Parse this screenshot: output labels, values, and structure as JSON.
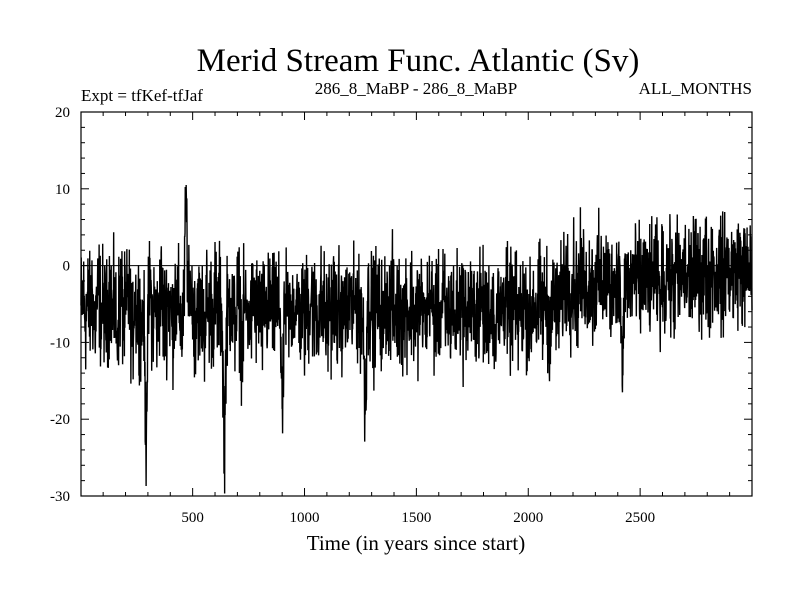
{
  "chart_data": {
    "type": "line",
    "title": "Merid Stream Func. Atlantic (Sv)",
    "subtitle_left": "Expt = tfKef-tfJaf",
    "subtitle_center": "286_8_MaBP - 286_8_MaBP",
    "subtitle_right": "ALL_MONTHS",
    "xlabel": "Time (in years since start)",
    "ylabel": "",
    "xlim": [
      1,
      3000
    ],
    "ylim": [
      -30,
      20
    ],
    "x_ticks": [
      500,
      1000,
      1500,
      2000,
      2500
    ],
    "x_tick_labels": [
      "500",
      "1000",
      "1500",
      "2000",
      "2500"
    ],
    "y_ticks": [
      -30,
      -20,
      -10,
      0,
      10,
      20
    ],
    "y_tick_labels": [
      "-30",
      "-20",
      "-10",
      "0",
      "10",
      "20"
    ],
    "grid": false,
    "line_color": "#000000",
    "series": [
      {
        "x_start": 1,
        "x_step": 10,
        "values": [
          -5.2,
          -3.8,
          -7.1,
          -4.5,
          -6.3,
          -2.9,
          -8.4,
          -5.7,
          -3.1,
          -6.8,
          -4.2,
          -7.5,
          -5.9,
          -2.6,
          -6.1,
          -4.8,
          -8.9,
          -5.3,
          -3.7,
          -7.2,
          -6.4,
          -4.1,
          -5.6,
          -9.3,
          -3.4,
          -6.7,
          -5.1,
          -7.8,
          -4.6,
          -23.0,
          -5.8,
          -3.3,
          -6.9,
          -4.7,
          -8.1,
          -5.4,
          -2.8,
          -7.4,
          -6.2,
          -4.4,
          -5.5,
          -7.9,
          -3.6,
          -6.5,
          -4.9,
          -8.3,
          -5.0,
          10.5,
          -6.6,
          -4.3,
          -5.2,
          -7.6,
          -3.9,
          -6.0,
          -5.7,
          -8.7,
          -4.0,
          -6.3,
          -5.1,
          -7.3,
          -3.5,
          -6.8,
          -4.6,
          -5.9,
          -24.5,
          -7.0,
          -5.3,
          -4.2,
          -6.4,
          -8.0,
          -3.8,
          -5.6,
          -10.8,
          -4.5,
          -6.1,
          -5.0,
          -7.7,
          -3.2,
          -6.5,
          -4.9,
          -5.4,
          -8.6,
          -4.1,
          -6.7,
          -5.8,
          -3.6,
          -7.1,
          -4.4,
          -6.0,
          -5.5,
          -18.6,
          -7.4,
          -4.8,
          -6.2,
          -5.3,
          -3.9,
          -7.8,
          -4.3,
          -6.6,
          -5.1,
          -8.2,
          -4.7,
          -5.9,
          -3.3,
          -6.9,
          -5.2,
          -7.5,
          -4.0,
          -6.3,
          -5.6,
          -8.8,
          -4.5,
          -6.1,
          -3.7,
          -7.2,
          -5.4,
          -4.9,
          -6.7,
          -5.0,
          -7.9,
          -3.4,
          -6.4,
          -5.8,
          -4.2,
          -7.6,
          -5.5,
          -6.8,
          -19.4,
          -4.6,
          -6.0,
          -5.3,
          -7.3,
          -3.8,
          -6.5,
          -5.1,
          -8.4,
          -4.4,
          -6.2,
          -5.7,
          -3.5,
          -7.0,
          -4.8,
          -6.9,
          -5.2,
          -7.7,
          -4.1,
          -5.6,
          -6.3,
          -3.9,
          -8.1,
          -5.0,
          -6.6,
          -4.3,
          -7.4,
          -5.9,
          -6.0,
          -4.7,
          -5.4,
          -7.8,
          -3.6,
          -6.7,
          -5.3,
          -4.5,
          -7.1,
          -5.8,
          -6.1,
          -4.0,
          -8.5,
          -5.5,
          -6.4,
          -3.7,
          -7.5,
          -5.0,
          -6.8,
          -4.9,
          -5.7,
          -7.2,
          -4.2,
          -6.5,
          -3.8,
          -5.9,
          -8.0,
          -5.1,
          -6.2,
          -4.6,
          -7.6,
          -5.4,
          -6.9,
          -4.4,
          -5.8,
          -3.3,
          -7.0,
          -6.3,
          -5.2,
          -4.8,
          -7.9,
          -5.6,
          -6.0,
          -4.3,
          -6.7,
          -5.0,
          -8.3,
          -4.1,
          -5.5,
          -7.4,
          -3.9,
          -6.4,
          -5.3,
          -4.7,
          -7.3,
          -6.1,
          -5.8,
          -4.0,
          -6.6,
          -5.2,
          -3.5,
          -1.4,
          -2.8,
          -0.9,
          -3.6,
          -1.8,
          -2.3,
          -4.1,
          -1.2,
          -2.9,
          -0.6,
          -3.3,
          -2.0,
          -1.5,
          -3.8,
          -2.4,
          -0.8,
          -2.7,
          -1.9,
          -3.1,
          -1.1,
          -2.5,
          -4.2,
          -0.7,
          -3.0,
          -2.2,
          -1.6,
          -16.5,
          -2.6,
          -1.3,
          -3.4,
          -2.1,
          -0.5,
          -2.8,
          -1.7,
          -3.7,
          -2.3,
          -1.0,
          -2.9,
          -1.4,
          -3.2,
          -0.4,
          -2.0,
          -1.8,
          -3.5,
          -1.2,
          -2.7,
          0.1,
          -2.4,
          -1.6,
          -3.0,
          -0.9,
          -2.2,
          -1.9,
          -0.3,
          -1.5,
          -2.6,
          -0.8,
          -1.3,
          -0.5,
          -2.1,
          0.4,
          -1.1,
          -1.8,
          -0.2,
          -1.4,
          -2.3,
          0.6,
          -0.9,
          -1.7,
          -0.1,
          -1.2,
          -2.0,
          0.8,
          -0.6,
          -1.5,
          -0.3,
          -1.0,
          -1.9,
          0.3,
          -0.7,
          -1.3,
          0.0,
          -1.6,
          -0.4,
          -2.2,
          -0.8,
          -1.1,
          0.5,
          -1.7,
          -0.5,
          -1.2,
          -0.2,
          -1.8,
          -0.9,
          -1.4
        ]
      }
    ]
  }
}
